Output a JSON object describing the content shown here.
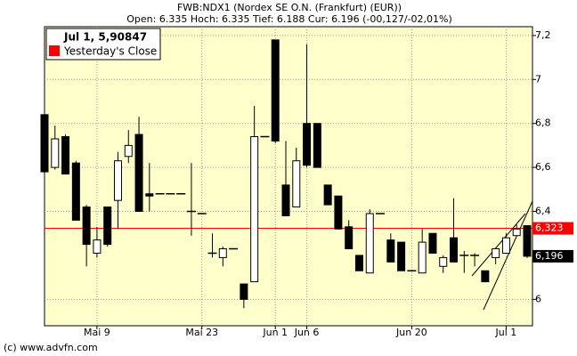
{
  "chart_data": {
    "type": "candlestick",
    "title": "FWB:NDX1 (Nordex SE O.N. (Frankfurt) (EUR))",
    "subtitle": "Open: 6.335 Hoch: 6.335 Tief: 6.188 Cur: 6.196 (-00,127/-02,01%)",
    "legend_title": "Jul 1, 5,90847",
    "categories": [
      null,
      null,
      null,
      null,
      null,
      "Mai 9",
      null,
      null,
      null,
      null,
      null,
      null,
      null,
      null,
      null,
      "Mai 23",
      null,
      null,
      null,
      null,
      null,
      null,
      "Jun 1",
      null,
      null,
      "Jun 6",
      null,
      null,
      null,
      null,
      null,
      null,
      null,
      null,
      null,
      "Jun 20",
      null,
      null,
      null,
      null,
      null,
      null,
      null,
      null,
      "Jul 1",
      null,
      null
    ],
    "open": [
      6.84,
      6.6,
      6.74,
      6.62,
      6.42,
      6.21,
      6.42,
      6.45,
      6.65,
      6.75,
      6.48,
      6.48,
      6.48,
      6.48,
      6.4,
      6.39,
      6.21,
      6.19,
      6.23,
      6.07,
      6.08,
      6.74,
      7.18,
      6.52,
      6.42,
      6.8,
      6.8,
      6.52,
      6.47,
      6.33,
      6.2,
      6.12,
      6.39,
      6.27,
      6.26,
      6.13,
      6.12,
      6.3,
      6.15,
      6.28,
      6.2,
      6.2,
      6.13,
      6.19,
      6.21,
      6.29,
      6.335
    ],
    "high": [
      6.84,
      6.79,
      6.75,
      6.63,
      6.43,
      6.33,
      6.42,
      6.67,
      6.77,
      6.83,
      6.62,
      6.48,
      6.48,
      6.48,
      6.62,
      6.39,
      6.3,
      6.24,
      6.23,
      6.07,
      6.88,
      6.74,
      7.18,
      6.72,
      6.69,
      7.16,
      6.8,
      6.52,
      6.47,
      6.36,
      6.2,
      6.41,
      6.39,
      6.3,
      6.26,
      6.13,
      6.32,
      6.3,
      6.2,
      6.46,
      6.22,
      6.21,
      6.13,
      6.23,
      6.3,
      6.34,
      6.335
    ],
    "low": [
      6.58,
      6.59,
      6.57,
      6.36,
      6.15,
      6.19,
      6.24,
      6.32,
      6.62,
      6.4,
      6.4,
      6.48,
      6.48,
      6.48,
      6.29,
      6.39,
      6.19,
      6.15,
      6.23,
      5.96,
      6.08,
      6.74,
      6.71,
      6.38,
      6.42,
      6.6,
      6.6,
      6.43,
      6.32,
      6.23,
      6.13,
      6.12,
      6.39,
      6.17,
      6.13,
      6.13,
      6.12,
      6.21,
      6.12,
      6.17,
      6.12,
      6.15,
      6.08,
      6.16,
      6.21,
      6.29,
      6.188
    ],
    "close": [
      6.58,
      6.73,
      6.57,
      6.36,
      6.25,
      6.27,
      6.25,
      6.63,
      6.7,
      6.4,
      6.47,
      6.48,
      6.48,
      6.48,
      6.4,
      6.39,
      6.21,
      6.23,
      6.23,
      6.0,
      6.74,
      6.74,
      6.72,
      6.38,
      6.63,
      6.61,
      6.6,
      6.43,
      6.32,
      6.23,
      6.13,
      6.39,
      6.39,
      6.17,
      6.13,
      6.13,
      6.26,
      6.21,
      6.19,
      6.17,
      6.2,
      6.2,
      6.08,
      6.23,
      6.28,
      6.32,
      6.196
    ],
    "ylim": [
      5.88,
      7.24
    ],
    "yticks": [
      {
        "value": 7.2,
        "label": "7,2"
      },
      7,
      {
        "value": 6.8,
        "label": "6,8"
      },
      {
        "value": 6.6,
        "label": "6,6"
      },
      {
        "value": 6.4,
        "label": "6,4"
      },
      6
    ],
    "grid": true,
    "reference": {
      "name": "Yesterday's Close",
      "color": "#ff0000",
      "value": 6.323,
      "label": "6,323"
    },
    "last_price": {
      "value": 6.196,
      "label": "6,196"
    },
    "background": "#ffffcc"
  },
  "footer": "(c) www.advfn.com"
}
